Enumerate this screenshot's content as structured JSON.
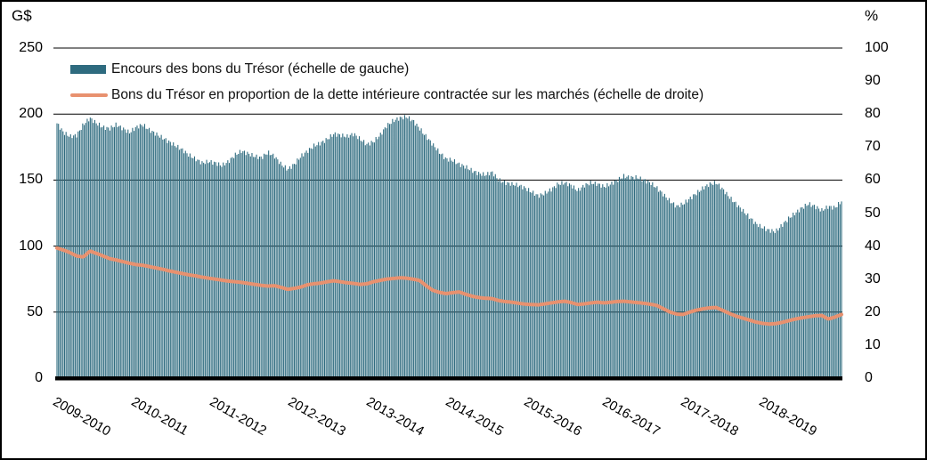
{
  "figure": {
    "left_unit": "G$",
    "right_unit": "%"
  },
  "chart_data": {
    "type": "bar",
    "subtype": "combo-bar-line-dual-axis",
    "title": "",
    "xlabel": "",
    "ylabel_left": "G$",
    "ylabel_right": "%",
    "x_categories": [
      "2009-2010",
      "2010-2011",
      "2011-2012",
      "2012-2013",
      "2013-2014",
      "2014-2015",
      "2015-2016",
      "2016-2017",
      "2017-2018",
      "2018-2019"
    ],
    "months_per_category": 12,
    "left_axis": {
      "min": 0,
      "max": 250,
      "tick_step": 50,
      "ticks": [
        250,
        200,
        150,
        100,
        50,
        0
      ]
    },
    "right_axis": {
      "min": 0,
      "max": 100,
      "tick_step": 10,
      "ticks": [
        100,
        90,
        80,
        70,
        60,
        50,
        40,
        30,
        20,
        10,
        0
      ]
    },
    "gridlines_at_left_values": [
      250,
      200,
      150,
      100,
      50
    ],
    "grid": "horizontal-behind-bars",
    "legend_position": "top-left-inside",
    "series": [
      {
        "name": "Encours des bons du Trésor (échelle de gauche)",
        "type": "bar",
        "axis": "left",
        "unit": "G$",
        "color": "#2e6b7f",
        "frequency_rendered": "weekly-interpolated",
        "monthly_values": [
          193,
          186,
          183,
          184,
          192,
          197,
          193,
          190,
          189,
          192,
          189,
          186,
          190,
          192,
          188,
          185,
          182,
          179,
          176,
          173,
          169,
          166,
          163,
          164,
          163,
          161,
          164,
          169,
          172,
          170,
          168,
          167,
          171,
          168,
          162,
          158,
          162,
          168,
          172,
          176,
          178,
          181,
          185,
          184,
          183,
          185,
          181,
          177,
          179,
          184,
          191,
          195,
          197,
          198,
          195,
          189,
          183,
          177,
          171,
          166,
          165,
          162,
          160,
          157,
          155,
          154,
          156,
          150,
          148,
          147,
          146,
          144,
          141,
          138,
          140,
          143,
          147,
          148,
          146,
          142,
          146,
          148,
          147,
          145,
          147,
          150,
          153,
          152,
          152,
          150,
          148,
          144,
          139,
          134,
          130,
          132,
          136,
          140,
          144,
          147,
          148,
          143,
          137,
          132,
          127,
          122,
          117,
          114,
          112,
          111,
          116,
          121,
          125,
          129,
          132,
          130,
          127,
          130,
          129,
          134
        ]
      },
      {
        "name": "Bons du Trésor en proportion de la dette intérieure contractée sur les marchés (échelle de droite)",
        "type": "line",
        "axis": "right",
        "unit": "%",
        "color": "#e8916f",
        "monthly_values": [
          39.4,
          38.8,
          38.0,
          37.0,
          36.7,
          38.5,
          37.8,
          37.0,
          36.2,
          35.8,
          35.3,
          34.8,
          34.4,
          34.2,
          33.8,
          33.4,
          33.0,
          32.5,
          32.1,
          31.7,
          31.3,
          31.0,
          30.6,
          30.3,
          30.0,
          29.7,
          29.4,
          29.2,
          29.0,
          28.7,
          28.4,
          28.1,
          27.9,
          28.0,
          27.5,
          26.9,
          27.2,
          27.6,
          28.3,
          28.6,
          28.8,
          29.2,
          29.5,
          29.2,
          28.9,
          28.7,
          28.4,
          28.6,
          29.2,
          29.6,
          30.0,
          30.2,
          30.4,
          30.3,
          30.0,
          29.6,
          28.0,
          26.6,
          26.0,
          25.6,
          25.9,
          26.1,
          25.4,
          24.8,
          24.4,
          24.2,
          24.1,
          23.5,
          23.2,
          23.0,
          22.7,
          22.4,
          22.3,
          22.2,
          22.5,
          22.8,
          23.1,
          23.3,
          22.9,
          22.3,
          22.5,
          22.8,
          23.0,
          22.8,
          23.0,
          23.2,
          23.3,
          23.1,
          22.9,
          22.7,
          22.4,
          22.0,
          21.0,
          20.0,
          19.4,
          19.3,
          20.0,
          20.6,
          21.0,
          21.3,
          21.4,
          20.5,
          19.6,
          18.8,
          18.2,
          17.6,
          17.0,
          16.6,
          16.4,
          16.5,
          16.9,
          17.4,
          17.9,
          18.3,
          18.6,
          18.9,
          19.0,
          17.9,
          18.5,
          19.3
        ]
      }
    ]
  }
}
